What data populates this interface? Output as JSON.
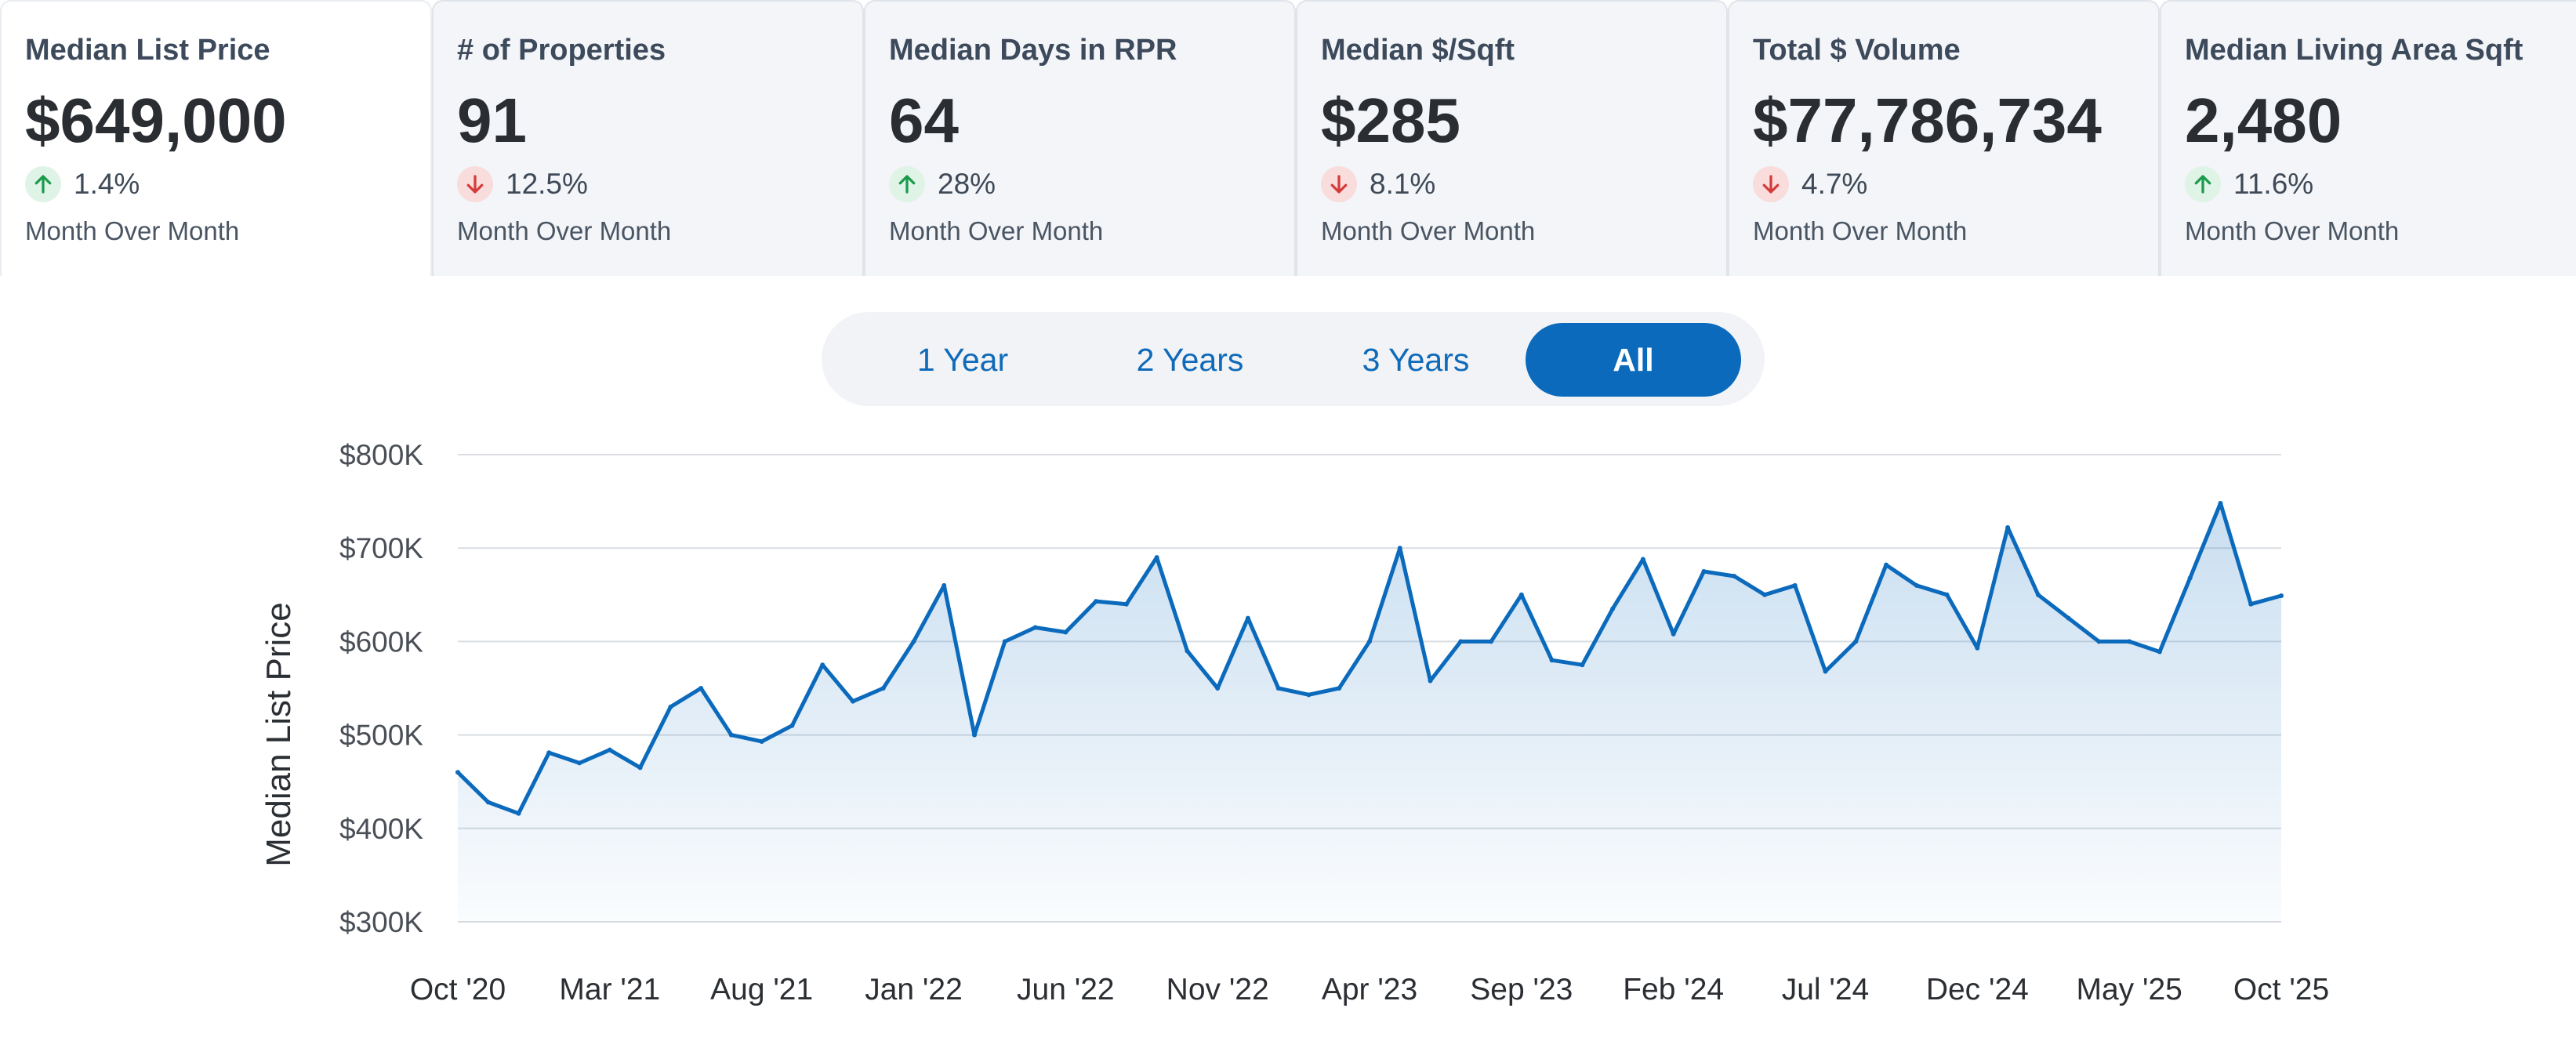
{
  "metrics": [
    {
      "title": "Median List Price",
      "value": "$649,000",
      "direction": "up",
      "change": "1.4%",
      "period": "Month Over Month",
      "active": true
    },
    {
      "title": "# of Properties",
      "value": "91",
      "direction": "down",
      "change": "12.5%",
      "period": "Month Over Month",
      "active": false
    },
    {
      "title": "Median Days in RPR",
      "value": "64",
      "direction": "up",
      "change": "28%",
      "period": "Month Over Month",
      "active": false
    },
    {
      "title": "Median $/Sqft",
      "value": "$285",
      "direction": "down",
      "change": "8.1%",
      "period": "Month Over Month",
      "active": false
    },
    {
      "title": "Total $ Volume",
      "value": "$77,786,734",
      "direction": "down",
      "change": "4.7%",
      "period": "Month Over Month",
      "active": false
    },
    {
      "title": "Median Living Area Sqft",
      "value": "2,480",
      "direction": "up",
      "change": "11.6%",
      "period": "Month Over Month",
      "active": false
    }
  ],
  "range": {
    "options": [
      "1 Year",
      "2 Years",
      "3 Years",
      "All"
    ],
    "selected": "All"
  },
  "colors": {
    "line": "#0b6abc",
    "up_arrow": "#1a9b4b",
    "down_arrow": "#d43b3b",
    "grid": "#d9dde2"
  },
  "chart_data": {
    "type": "area",
    "xlabel": "",
    "ylabel": "Median List Price",
    "ylim": [
      300000,
      800000
    ],
    "yticks": [
      800000,
      700000,
      600000,
      500000,
      400000,
      300000
    ],
    "ytick_labels": [
      "$800K",
      "$700K",
      "$600K",
      "$500K",
      "$400K",
      "$300K"
    ],
    "xtick_labels": [
      "Oct '20",
      "Mar '21",
      "Aug '21",
      "Jan '22",
      "Jun '22",
      "Nov '22",
      "Apr '23",
      "Sep '23",
      "Feb '24",
      "Jul '24",
      "Dec '24",
      "May '25",
      "Oct '25"
    ],
    "xtick_every": 5,
    "grid": true,
    "series": [
      {
        "values": [
          460000,
          428000,
          416000,
          481000,
          470000,
          484000,
          465000,
          530000,
          550000,
          500000,
          493000,
          510000,
          575000,
          536000,
          550000,
          600000,
          660000,
          500000,
          600000,
          615000,
          610000,
          643000,
          640000,
          690000,
          590000,
          550000,
          625000,
          550000,
          543000,
          550000,
          600000,
          700000,
          558000,
          600000,
          600000,
          650000,
          580000,
          575000,
          635000,
          688000,
          608000,
          675000,
          670000,
          650000,
          660000,
          568000,
          600000,
          682000,
          660000,
          650000,
          593000,
          722000,
          650000,
          625000,
          600000,
          600000,
          589000,
          668000,
          748000,
          640000,
          649000
        ]
      }
    ]
  }
}
